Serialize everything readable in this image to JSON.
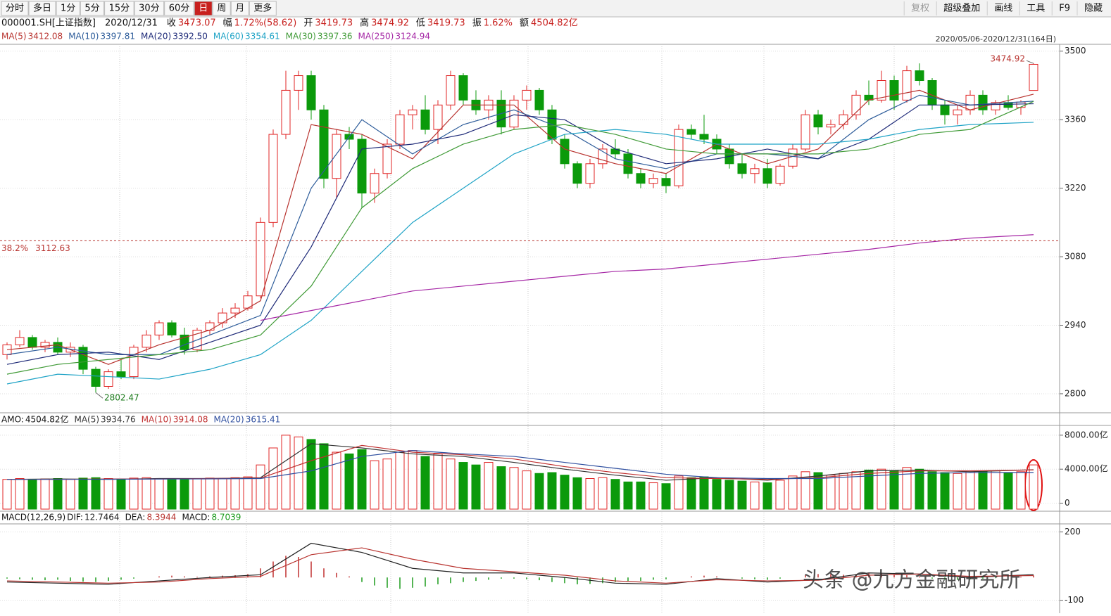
{
  "toolbar": {
    "left": [
      "分时",
      "多日",
      "1分",
      "5分",
      "15分",
      "30分",
      "60分",
      "日",
      "周",
      "月",
      "更多"
    ],
    "active": 7,
    "right": [
      "复权",
      "超级叠加",
      "画线",
      "工具",
      "F9",
      "隐藏"
    ]
  },
  "info": [
    {
      "label": "000001.SH[上证指数]"
    },
    {
      "label": "2020/12/31"
    },
    {
      "label": "收",
      "value": "3473.07"
    },
    {
      "label": "幅",
      "value": "1.72%(58.62)"
    },
    {
      "label": "开",
      "value": "3419.73"
    },
    {
      "label": "高",
      "value": "3474.92"
    },
    {
      "label": "低",
      "value": "3419.73"
    },
    {
      "label": "振",
      "value": "1.62%"
    },
    {
      "label": "额",
      "value": "4504.82亿"
    }
  ],
  "range_label": "2020/05/06-2020/12/31(164日)",
  "watermark": "头条 @九方金融研究所",
  "chart_data": [
    {
      "type": "candlestick",
      "up_color": "#e02424",
      "down_color": "#0b9a0b",
      "ylim": [
        2764,
        3514
      ],
      "yticks": [
        2800,
        2940,
        3080,
        3220,
        3360,
        3500
      ],
      "candles": [
        [
          2880,
          2905,
          2870,
          2900
        ],
        [
          2900,
          2930,
          2895,
          2915
        ],
        [
          2915,
          2920,
          2890,
          2895
        ],
        [
          2895,
          2910,
          2885,
          2905
        ],
        [
          2905,
          2915,
          2880,
          2885
        ],
        [
          2885,
          2905,
          2875,
          2895
        ],
        [
          2895,
          2900,
          2840,
          2850
        ],
        [
          2850,
          2855,
          2802.47,
          2815
        ],
        [
          2815,
          2850,
          2810,
          2845
        ],
        [
          2845,
          2870,
          2830,
          2835
        ],
        [
          2835,
          2900,
          2830,
          2895
        ],
        [
          2895,
          2930,
          2885,
          2920
        ],
        [
          2920,
          2950,
          2910,
          2945
        ],
        [
          2945,
          2950,
          2915,
          2920
        ],
        [
          2920,
          2935,
          2880,
          2890
        ],
        [
          2890,
          2935,
          2885,
          2930
        ],
        [
          2930,
          2950,
          2920,
          2945
        ],
        [
          2945,
          2975,
          2935,
          2965
        ],
        [
          2965,
          2985,
          2955,
          2975
        ],
        [
          2975,
          3010,
          2970,
          3000
        ],
        [
          3000,
          3160,
          2995,
          3150
        ],
        [
          3150,
          3340,
          3140,
          3330
        ],
        [
          3330,
          3460,
          3320,
          3420
        ],
        [
          3420,
          3460,
          3380,
          3450
        ],
        [
          3450,
          3460,
          3360,
          3380
        ],
        [
          3380,
          3390,
          3220,
          3240
        ],
        [
          3240,
          3340,
          3200,
          3330
        ],
        [
          3330,
          3345,
          3300,
          3320
        ],
        [
          3320,
          3330,
          3180,
          3210
        ],
        [
          3210,
          3260,
          3190,
          3250
        ],
        [
          3250,
          3320,
          3240,
          3310
        ],
        [
          3310,
          3380,
          3300,
          3370
        ],
        [
          3370,
          3390,
          3340,
          3380
        ],
        [
          3380,
          3410,
          3330,
          3340
        ],
        [
          3340,
          3400,
          3310,
          3390
        ],
        [
          3390,
          3460,
          3380,
          3450
        ],
        [
          3450,
          3455,
          3390,
          3400
        ],
        [
          3400,
          3420,
          3370,
          3380
        ],
        [
          3380,
          3410,
          3360,
          3400
        ],
        [
          3400,
          3420,
          3330,
          3345
        ],
        [
          3345,
          3410,
          3340,
          3400
        ],
        [
          3400,
          3430,
          3380,
          3420
        ],
        [
          3420,
          3425,
          3370,
          3380
        ],
        [
          3380,
          3390,
          3310,
          3320
        ],
        [
          3320,
          3330,
          3260,
          3270
        ],
        [
          3270,
          3275,
          3220,
          3230
        ],
        [
          3230,
          3280,
          3220,
          3270
        ],
        [
          3270,
          3310,
          3260,
          3300
        ],
        [
          3300,
          3320,
          3280,
          3290
        ],
        [
          3290,
          3300,
          3240,
          3250
        ],
        [
          3250,
          3260,
          3220,
          3230
        ],
        [
          3230,
          3250,
          3220,
          3240
        ],
        [
          3240,
          3250,
          3210,
          3225
        ],
        [
          3225,
          3350,
          3220,
          3340
        ],
        [
          3340,
          3350,
          3320,
          3330
        ],
        [
          3330,
          3370,
          3310,
          3320
        ],
        [
          3320,
          3330,
          3290,
          3300
        ],
        [
          3300,
          3310,
          3260,
          3270
        ],
        [
          3270,
          3290,
          3240,
          3250
        ],
        [
          3250,
          3270,
          3230,
          3260
        ],
        [
          3260,
          3280,
          3220,
          3230
        ],
        [
          3230,
          3270,
          3225,
          3265
        ],
        [
          3265,
          3310,
          3260,
          3300
        ],
        [
          3300,
          3380,
          3295,
          3370
        ],
        [
          3370,
          3380,
          3330,
          3345
        ],
        [
          3345,
          3360,
          3330,
          3350
        ],
        [
          3350,
          3380,
          3340,
          3370
        ],
        [
          3370,
          3420,
          3360,
          3410
        ],
        [
          3410,
          3440,
          3390,
          3400
        ],
        [
          3400,
          3460,
          3395,
          3440
        ],
        [
          3440,
          3450,
          3380,
          3400
        ],
        [
          3400,
          3470,
          3395,
          3460
        ],
        [
          3460,
          3475,
          3430,
          3440
        ],
        [
          3440,
          3445,
          3380,
          3390
        ],
        [
          3390,
          3400,
          3350,
          3370
        ],
        [
          3370,
          3390,
          3350,
          3380
        ],
        [
          3380,
          3420,
          3370,
          3410
        ],
        [
          3410,
          3420,
          3370,
          3380
        ],
        [
          3380,
          3400,
          3370,
          3395
        ],
        [
          3395,
          3410,
          3380,
          3385
        ],
        [
          3385,
          3400,
          3370,
          3396
        ],
        [
          3419.73,
          3474.92,
          3419.73,
          3473.07
        ]
      ],
      "line_x": [
        0,
        4,
        8,
        12,
        16,
        20,
        24,
        28,
        32,
        36,
        40,
        44,
        48,
        52,
        56,
        60,
        64,
        68,
        72,
        76,
        81
      ],
      "series": [
        {
          "name": "MA(5)",
          "current": "3412.08",
          "color": "#b8332f",
          "values": [
            2890,
            2900,
            2860,
            2900,
            2930,
            2990,
            3350,
            3330,
            3280,
            3390,
            3390,
            3300,
            3270,
            3250,
            3310,
            3270,
            3300,
            3400,
            3420,
            3380,
            3412.08
          ]
        },
        {
          "name": "MA(10)",
          "current": "3397.81",
          "color": "#2d5c9a",
          "values": [
            2880,
            2895,
            2880,
            2880,
            2920,
            2960,
            3220,
            3360,
            3290,
            3350,
            3380,
            3340,
            3280,
            3260,
            3290,
            3290,
            3280,
            3360,
            3410,
            3390,
            3397.81
          ]
        },
        {
          "name": "MA(20)",
          "current": "3392.50",
          "color": "#1e2a78",
          "values": [
            2860,
            2880,
            2885,
            2870,
            2905,
            2940,
            3100,
            3300,
            3310,
            3330,
            3370,
            3360,
            3300,
            3270,
            3280,
            3300,
            3280,
            3320,
            3390,
            3390,
            3392.5
          ]
        },
        {
          "name": "MA(60)",
          "current": "3354.61",
          "color": "#1ea3c6",
          "values": [
            2820,
            2840,
            2835,
            2830,
            2850,
            2880,
            2950,
            3050,
            3150,
            3220,
            3290,
            3330,
            3340,
            3330,
            3310,
            3310,
            3310,
            3320,
            3340,
            3350,
            3354.61
          ]
        },
        {
          "name": "MA(30)",
          "current": "3397.36",
          "color": "#3f9a36",
          "values": [
            2840,
            2860,
            2870,
            2880,
            2890,
            2920,
            3020,
            3180,
            3260,
            3310,
            3340,
            3350,
            3330,
            3300,
            3290,
            3290,
            3290,
            3300,
            3330,
            3340,
            3397.36
          ]
        },
        {
          "name": "MA(250)",
          "current": "3124.94",
          "color": "#a526a5",
          "values": [
            null,
            null,
            null,
            null,
            null,
            2950,
            2970,
            2990,
            3010,
            3020,
            3030,
            3040,
            3050,
            3055,
            3065,
            3075,
            3085,
            3095,
            3108,
            3118,
            3124.94
          ]
        }
      ],
      "fib_line": {
        "label": "38.2%",
        "value": 3112.63,
        "value_label": "3112.63",
        "color": "#b8332f"
      },
      "annotations": [
        {
          "text": "3474.92",
          "candle": 81
        },
        {
          "text": "2802.47",
          "candle": 7
        }
      ]
    },
    {
      "type": "volume",
      "title": "AMO:",
      "current": "4504.82亿",
      "ylim": [
        -700,
        8900
      ],
      "yticks": [
        {
          "value": 0,
          "label": "0"
        },
        {
          "value": 4000,
          "label": "4000.00亿"
        },
        {
          "value": 8000,
          "label": "8000.00亿"
        }
      ],
      "values": [
        2800,
        2900,
        2750,
        2850,
        2900,
        2800,
        2950,
        3000,
        2900,
        2850,
        2950,
        3000,
        2900,
        2800,
        2850,
        2900,
        2950,
        2900,
        3000,
        3100,
        4500,
        6500,
        8000,
        7800,
        7500,
        7000,
        6000,
        5800,
        6300,
        5000,
        5200,
        6000,
        6200,
        5500,
        5800,
        5200,
        4800,
        4500,
        4800,
        4300,
        4200,
        3800,
        3500,
        3600,
        3300,
        3000,
        2900,
        3000,
        2800,
        2500,
        2500,
        2400,
        2300,
        3200,
        3000,
        3100,
        2800,
        2700,
        2600,
        2500,
        2400,
        2700,
        3200,
        3700,
        3600,
        3300,
        3500,
        3700,
        3900,
        4000,
        3800,
        4200,
        4000,
        3700,
        3600,
        3500,
        3800,
        3700,
        3800,
        3600,
        3700,
        4504.82
      ],
      "series": [
        {
          "name": "MA(5)",
          "current": "3934.76",
          "color": "#333333",
          "values": [
            2800,
            2850,
            2800,
            2900,
            2900,
            3000,
            7000,
            6500,
            5800,
            5500,
            4800,
            4000,
            3300,
            2700,
            3000,
            2700,
            3200,
            3800,
            3900,
            3700,
            3934.76
          ]
        },
        {
          "name": "MA(10)",
          "current": "3914.08",
          "color": "#c03030",
          "values": [
            2800,
            2800,
            2850,
            2850,
            2900,
            2950,
            5000,
            6800,
            6000,
            5700,
            5200,
            4300,
            3600,
            3000,
            2900,
            2800,
            3000,
            3500,
            3800,
            3800,
            3914.08
          ]
        },
        {
          "name": "MA(20)",
          "current": "3615.41",
          "color": "#3050a0",
          "values": [
            2800,
            2800,
            2820,
            2840,
            2860,
            2900,
            3800,
            5500,
            6200,
            5800,
            5500,
            4800,
            4100,
            3400,
            3000,
            2900,
            2900,
            3200,
            3500,
            3600,
            3615.41
          ]
        }
      ]
    },
    {
      "type": "macd",
      "title": "MACD(12,26,9)",
      "ylim": [
        -135,
        235
      ],
      "yticks": [
        -100,
        200
      ],
      "hist_name": "MACD:",
      "hist_current": "8.7039",
      "hist_color_up": "#c03030",
      "hist_color_down": "#1a9a1a",
      "values": [
        -5,
        -8,
        -10,
        -12,
        -10,
        -15,
        -18,
        -20,
        -15,
        -10,
        -5,
        0,
        5,
        8,
        5,
        3,
        5,
        8,
        10,
        15,
        40,
        70,
        95,
        90,
        70,
        40,
        20,
        5,
        -20,
        -35,
        -45,
        -50,
        -45,
        -40,
        -30,
        -25,
        -20,
        -15,
        -10,
        -5,
        -5,
        -8,
        -12,
        -20,
        -25,
        -30,
        -28,
        -25,
        -20,
        -15,
        -15,
        -10,
        -8,
        0,
        5,
        8,
        5,
        0,
        -5,
        -8,
        -10,
        -5,
        0,
        10,
        15,
        15,
        12,
        15,
        20,
        20,
        15,
        10,
        5,
        -5,
        -10,
        -10,
        -8,
        -5,
        -3,
        0,
        4,
        8.7039
      ],
      "series": [
        {
          "name": "DIF:",
          "current": "12.7464",
          "color": "#222222",
          "values": [
            -20,
            -25,
            -30,
            -15,
            0,
            12,
            150,
            110,
            40,
            20,
            20,
            0,
            -25,
            -30,
            -5,
            -20,
            -10,
            20,
            15,
            0,
            12.7464
          ]
        },
        {
          "name": "DEA:",
          "current": "8.3944",
          "color": "#b8332f",
          "values": [
            -15,
            -20,
            -25,
            -20,
            -5,
            5,
            100,
            130,
            80,
            40,
            25,
            10,
            -15,
            -25,
            -10,
            -15,
            -12,
            10,
            15,
            5,
            8.3944
          ]
        }
      ]
    }
  ]
}
